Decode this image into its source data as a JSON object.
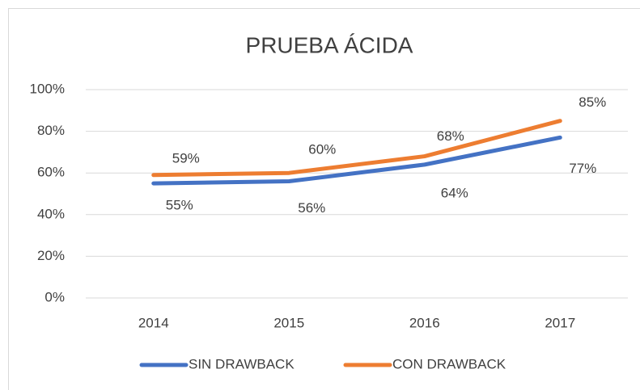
{
  "chart_data": {
    "type": "line",
    "title": "PRUEBA ÁCIDA",
    "categories": [
      "2014",
      "2015",
      "2016",
      "2017"
    ],
    "series": [
      {
        "name": "SIN DRAWBACK",
        "color": "#4472c4",
        "values": [
          55,
          56,
          64,
          77
        ],
        "value_labels": [
          "55%",
          "56%",
          "64%",
          "77%"
        ]
      },
      {
        "name": "CON DRAWBACK",
        "color": "#ed7d31",
        "values": [
          59,
          60,
          68,
          85
        ],
        "value_labels": [
          "59%",
          "60%",
          "68%",
          "85%"
        ]
      }
    ],
    "ylim": [
      0,
      100
    ],
    "yticks": [
      {
        "value": 0,
        "label": "0%"
      },
      {
        "value": 20,
        "label": "20%"
      },
      {
        "value": 40,
        "label": "40%"
      },
      {
        "value": 60,
        "label": "60%"
      },
      {
        "value": 80,
        "label": "80%"
      },
      {
        "value": 100,
        "label": "100%"
      }
    ],
    "grid": true,
    "legend": "bottom"
  }
}
